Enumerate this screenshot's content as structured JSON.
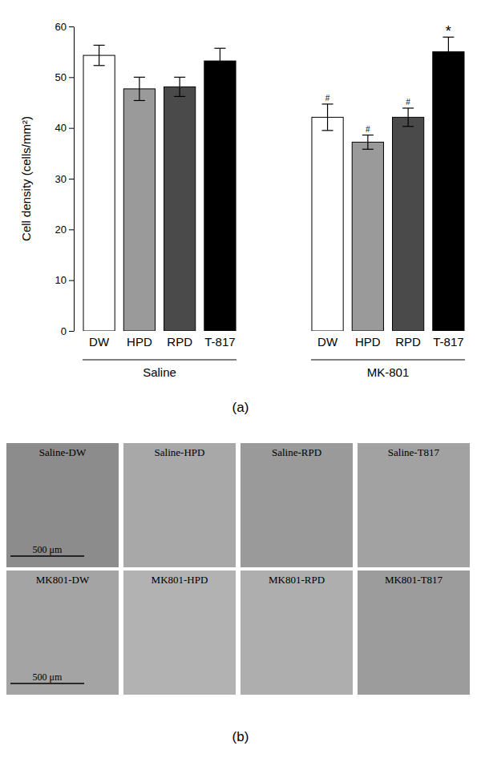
{
  "chart_data": {
    "type": "bar",
    "panel_label": "(a)",
    "y_label": "Cell density (cells/mm²)",
    "categories": [
      "DW",
      "HPD",
      "RPD",
      "T-817"
    ],
    "colors": [
      "#ffffff",
      "#9a9a9a",
      "#4a4a4a",
      "#000000"
    ],
    "series": [
      {
        "name": "Saline",
        "values": [
          54.3,
          47.7,
          48.1,
          53.2
        ],
        "errors": [
          2.0,
          2.3,
          1.9,
          2.5
        ],
        "annotations": [
          null,
          null,
          null,
          null
        ]
      },
      {
        "name": "MK-801",
        "values": [
          42.1,
          37.2,
          42.1,
          55.0
        ],
        "errors": [
          2.6,
          1.4,
          1.8,
          2.9
        ],
        "annotations": [
          "#",
          "#",
          "#",
          "*"
        ]
      }
    ],
    "ylim": [
      0,
      60
    ],
    "yticks": [
      0,
      10,
      20,
      30,
      40,
      50,
      60
    ]
  },
  "micrographs": {
    "panel_label": "(b)",
    "panels": [
      "Saline-DW",
      "Saline-HPD",
      "Saline-RPD",
      "Saline-T817",
      "MK801-DW",
      "MK801-HPD",
      "MK801-RPD",
      "MK801-T817"
    ],
    "scale_bar": "500 μm"
  }
}
